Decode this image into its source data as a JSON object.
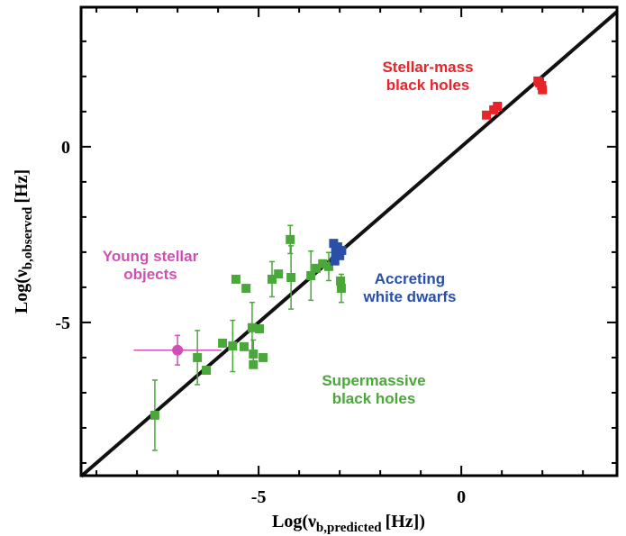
{
  "chart_data": {
    "type": "scatter",
    "xlabel": {
      "main": "Log(ν",
      "sub": "b,predicted",
      "unit": "[Hz])"
    },
    "ylabel": {
      "main": "Log(ν",
      "sub": "b,observed",
      "unit": "[Hz]"
    },
    "xlim": [
      -9.38,
      3.84
    ],
    "ylim": [
      -9.36,
      3.97
    ],
    "xticks": [
      -5,
      0
    ],
    "yticks": [
      -5,
      0
    ],
    "xminorticks": [
      -9,
      -8,
      -7,
      -6,
      -4,
      -3,
      -2,
      -1,
      1,
      2,
      3
    ],
    "yminorticks": [
      -9,
      -8,
      -7,
      -6,
      -4,
      -3,
      -2,
      -1,
      1,
      2,
      3
    ],
    "reference_line": {
      "x": [
        -9.38,
        3.84
      ],
      "y": [
        -9.38,
        3.84
      ],
      "color": "#111111"
    },
    "series": [
      {
        "label": [
          "Supermassive",
          "black holes"
        ],
        "color": "#4aa83a",
        "marker": "square",
        "x": [
          -7.56,
          -6.51,
          -6.29,
          -5.89,
          -5.64,
          -5.56,
          -5.31,
          -5.36,
          -5.16,
          -5.13,
          -5.13,
          -4.98,
          -4.89,
          -4.67,
          -4.51,
          -4.22,
          -4.2,
          -3.71,
          -3.58,
          -3.42,
          -3.27,
          -3.07,
          -2.98,
          -2.96
        ],
        "y": [
          -7.64,
          -6.0,
          -6.36,
          -5.59,
          -5.67,
          -3.77,
          -4.03,
          -5.69,
          -5.15,
          -5.9,
          -6.2,
          -5.18,
          -6.0,
          -3.77,
          -3.62,
          -2.64,
          -3.72,
          -3.67,
          -3.46,
          -3.33,
          -3.41,
          -3.08,
          -3.82,
          -4.03
        ],
        "yerr": [
          1.0,
          0.77,
          null,
          null,
          0.73,
          null,
          null,
          null,
          0.72,
          0.4,
          null,
          null,
          null,
          0.5,
          null,
          0.4,
          0.9,
          0.7,
          null,
          null,
          0.4,
          null,
          null,
          0.4
        ]
      },
      {
        "label": [
          "Young stellar",
          "objects"
        ],
        "color": "#d04fb4",
        "marker": "circle",
        "x": [
          -7.0
        ],
        "y": [
          -5.79
        ],
        "yerr": [
          0.42
        ],
        "xerr": [
          1.08
        ]
      },
      {
        "label": [
          "Accreting",
          "white dwarfs"
        ],
        "color": "#2a4fa8",
        "marker": "square",
        "x": [
          -3.15,
          -3.05,
          -3.1,
          -3.0,
          -3.12,
          -2.95
        ],
        "y": [
          -2.75,
          -2.85,
          -3.0,
          -3.1,
          -3.25,
          -2.95
        ]
      },
      {
        "label": [
          "Stellar-mass",
          "black holes"
        ],
        "color": "#e8232a",
        "marker": "square",
        "x": [
          0.62,
          0.8,
          0.89,
          1.89,
          1.93,
          1.98,
          2.0
        ],
        "y": [
          0.9,
          1.05,
          1.15,
          1.87,
          1.82,
          1.74,
          1.62
        ]
      }
    ]
  }
}
